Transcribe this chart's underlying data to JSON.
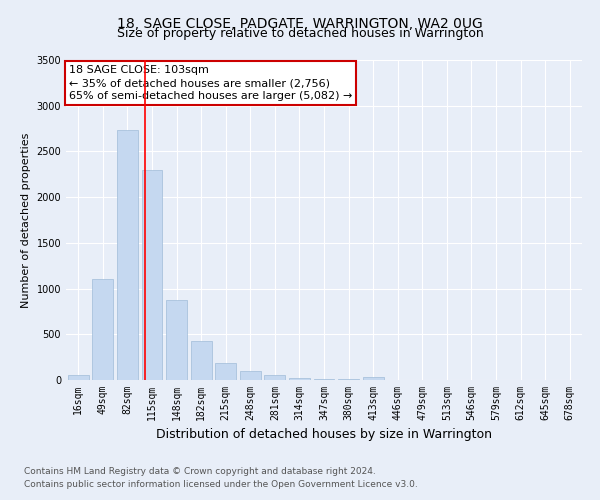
{
  "title": "18, SAGE CLOSE, PADGATE, WARRINGTON, WA2 0UG",
  "subtitle": "Size of property relative to detached houses in Warrington",
  "xlabel": "Distribution of detached houses by size in Warrington",
  "ylabel": "Number of detached properties",
  "categories": [
    "16sqm",
    "49sqm",
    "82sqm",
    "115sqm",
    "148sqm",
    "182sqm",
    "215sqm",
    "248sqm",
    "281sqm",
    "314sqm",
    "347sqm",
    "380sqm",
    "413sqm",
    "446sqm",
    "479sqm",
    "513sqm",
    "546sqm",
    "579sqm",
    "612sqm",
    "645sqm",
    "678sqm"
  ],
  "values": [
    50,
    1100,
    2730,
    2300,
    880,
    430,
    185,
    100,
    55,
    25,
    10,
    10,
    30,
    5,
    0,
    0,
    0,
    0,
    0,
    0,
    0
  ],
  "bar_color": "#c5d8f0",
  "bar_edge_color": "#a0bcd8",
  "red_line_index": 2.72,
  "ylim": [
    0,
    3500
  ],
  "yticks": [
    0,
    500,
    1000,
    1500,
    2000,
    2500,
    3000,
    3500
  ],
  "annotation_title": "18 SAGE CLOSE: 103sqm",
  "annotation_line1": "← 35% of detached houses are smaller (2,756)",
  "annotation_line2": "65% of semi-detached houses are larger (5,082) →",
  "annotation_box_color": "#ffffff",
  "annotation_box_edge": "#cc0000",
  "footer_line1": "Contains HM Land Registry data © Crown copyright and database right 2024.",
  "footer_line2": "Contains public sector information licensed under the Open Government Licence v3.0.",
  "background_color": "#e8eef8",
  "plot_background": "#e8eef8",
  "grid_color": "#ffffff",
  "title_fontsize": 10,
  "subtitle_fontsize": 9,
  "xlabel_fontsize": 9,
  "ylabel_fontsize": 8,
  "tick_fontsize": 7,
  "footer_fontsize": 6.5,
  "annotation_fontsize": 8
}
